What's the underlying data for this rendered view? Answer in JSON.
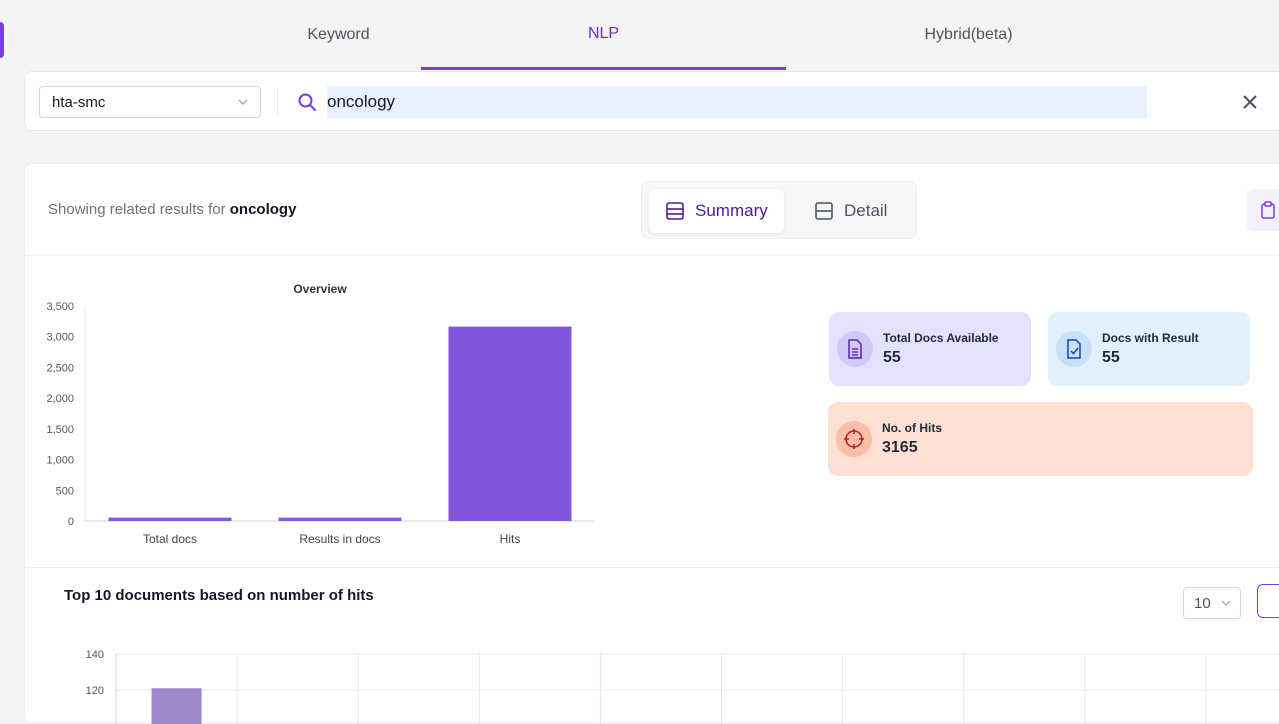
{
  "mode_tabs": [
    {
      "label": "Keyword",
      "active": false
    },
    {
      "label": "NLP",
      "active": true
    },
    {
      "label": "Hybrid(beta)",
      "active": false
    }
  ],
  "search": {
    "collection": "hta-smc",
    "query": "oncology"
  },
  "results": {
    "showing_prefix": "Showing related results for",
    "showing_term": "oncology",
    "view_toggle": {
      "summary_label": "Summary",
      "detail_label": "Detail",
      "active": "Summary"
    }
  },
  "stats": {
    "total_docs_label": "Total Docs Available",
    "total_docs_value": "55",
    "docs_with_result_label": "Docs with Result",
    "docs_with_result_value": "55",
    "hits_label": "No. of Hits",
    "hits_value": "3165"
  },
  "top10": {
    "title": "Top 10 documents based on number of hits",
    "count": "10"
  },
  "colors": {
    "accent": "#7e3fd6",
    "bar": "#8257db",
    "bar_light": "#9b87c9",
    "total_docs_card": "#e4e2fa",
    "docs_result_card": "#e2f0fc",
    "hits_card": "#fde0d3"
  },
  "chart_data": [
    {
      "type": "bar",
      "title": "Overview",
      "categories": [
        "Total docs",
        "Results in docs",
        "Hits"
      ],
      "values": [
        55,
        55,
        3165
      ],
      "ylim": [
        0,
        3500
      ],
      "yticks": [
        "0",
        "500",
        "1,000",
        "1,500",
        "2,000",
        "2,500",
        "3,000",
        "3,500"
      ],
      "ytick_values": [
        0,
        500,
        1000,
        1500,
        2000,
        2500,
        3000,
        3500
      ],
      "grid": false
    },
    {
      "type": "bar",
      "title": "Top 10 documents based on number of hits",
      "values": [
        121
      ],
      "ylim": [
        0,
        140
      ],
      "yticks": [
        "120",
        "140"
      ],
      "ytick_values": [
        120,
        140
      ],
      "grid": true
    }
  ]
}
